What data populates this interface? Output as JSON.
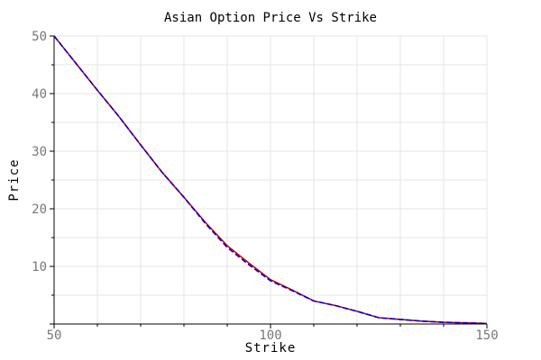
{
  "chart_data": {
    "type": "line",
    "title": "Asian Option Price Vs Strike",
    "xlabel": "Strike",
    "ylabel": "Price",
    "xlim": [
      50,
      150
    ],
    "ylim": [
      0,
      50
    ],
    "xticks": [
      50,
      100,
      150
    ],
    "yticks": [
      10,
      20,
      30,
      40,
      50
    ],
    "grid": true,
    "legend": "none",
    "x": [
      50,
      55,
      60,
      65,
      70,
      75,
      80,
      85,
      90,
      95,
      100,
      105,
      110,
      115,
      120,
      125,
      130,
      135,
      140,
      145,
      150
    ],
    "series": [
      {
        "color": "#cc0000",
        "style": "solid",
        "values": [
          50.0,
          45.3,
          40.6,
          36.0,
          31.1,
          26.3,
          22.0,
          17.6,
          13.6,
          10.6,
          7.7,
          5.9,
          4.0,
          3.2,
          2.2,
          1.1,
          0.8,
          0.5,
          0.3,
          0.2,
          0.1
        ]
      },
      {
        "color": "#0000dd",
        "style": "dashed",
        "values": [
          50.0,
          45.3,
          40.6,
          36.0,
          31.1,
          26.3,
          22.0,
          17.4,
          13.3,
          10.3,
          7.5,
          5.8,
          4.0,
          3.2,
          2.2,
          1.1,
          0.8,
          0.5,
          0.3,
          0.2,
          0.1
        ]
      }
    ]
  }
}
